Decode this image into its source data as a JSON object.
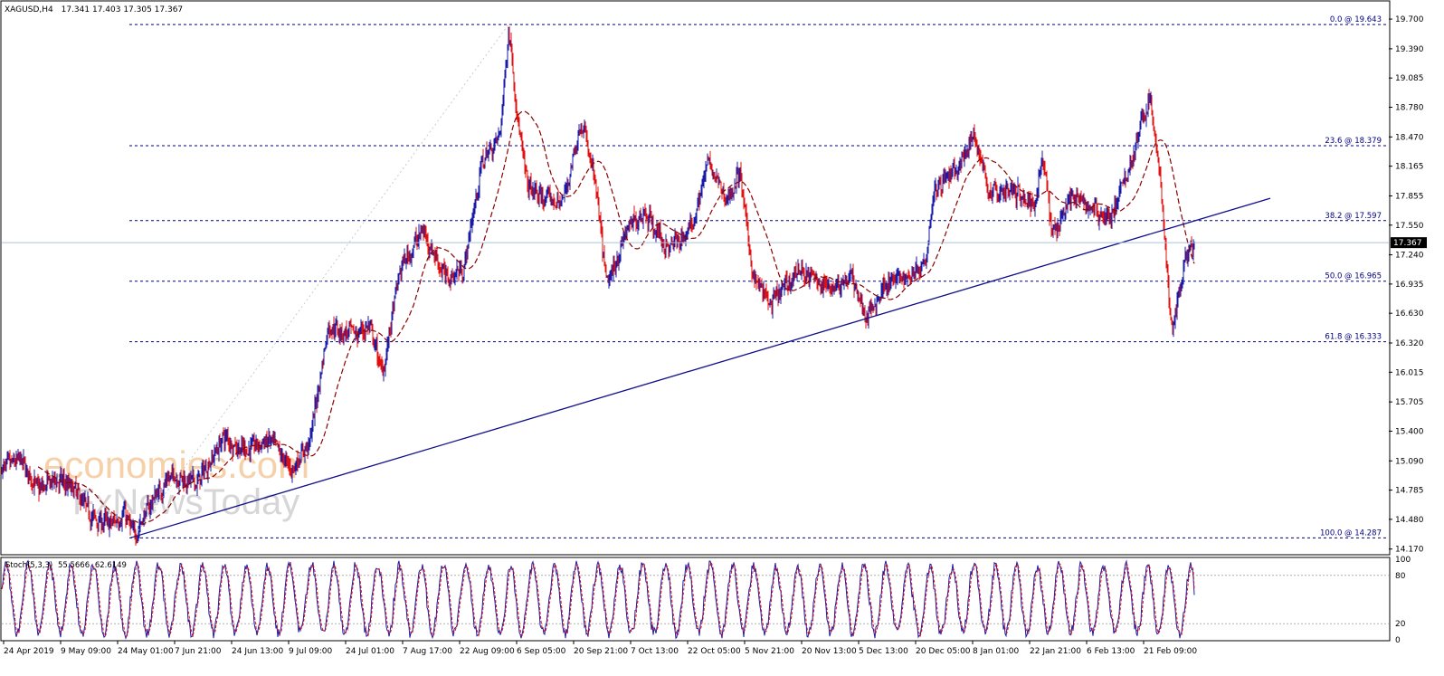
{
  "header": {
    "symbol": "XAGUSD,H4",
    "ohlc": "17.341 17.403 17.305 17.367"
  },
  "watermark": {
    "line1": "economies.com",
    "line2": "FxNewsToday"
  },
  "colors": {
    "bull": "#1a1aa8",
    "bear": "#e01010",
    "ma": "#8b0000",
    "fib": "#000080",
    "trendline": "#10108a",
    "grid_text": "#000000",
    "watermark_orange": "#f5c89a",
    "watermark_gray": "#d0d0d0"
  },
  "chart_data": [
    {
      "type": "candlestick",
      "title": "XAGUSD,H4",
      "y_axis": {
        "ticks": [
          19.7,
          19.39,
          19.085,
          18.78,
          18.47,
          18.165,
          17.855,
          17.55,
          17.24,
          16.935,
          16.63,
          16.32,
          16.015,
          15.705,
          15.4,
          15.09,
          14.785,
          14.48,
          14.17
        ],
        "tick_labels": [
          "19.700",
          "19.390",
          "19.085",
          "18.780",
          "18.470",
          "18.165",
          "17.855",
          "17.550",
          "17.240",
          "16.935",
          "16.630",
          "16.320",
          "16.015",
          "15.705",
          "15.400",
          "15.090",
          "14.785",
          "14.480",
          "14.170"
        ],
        "range": [
          14.12,
          19.88
        ]
      },
      "x_axis": {
        "tick_labels": [
          "24 Apr 2019",
          "9 May 09:00",
          "24 May 01:00",
          "7 Jun 21:00",
          "24 Jun 13:00",
          "9 Jul 09:00",
          "24 Jul 01:00",
          "7 Aug 17:00",
          "22 Aug 09:00",
          "6 Sep 05:00",
          "20 Sep 21:00",
          "7 Oct 13:00",
          "22 Oct 05:00",
          "5 Nov 21:00",
          "20 Nov 13:00",
          "5 Dec 13:00",
          "20 Dec 05:00",
          "8 Jan 01:00",
          "22 Jan 21:00",
          "6 Feb 13:00",
          "21 Feb 09:00"
        ]
      },
      "last_price": 17.367,
      "last_price_label": "17.367",
      "fib_levels": [
        {
          "level": 0.0,
          "price": 19.643,
          "label": "0.0 @ 19.643"
        },
        {
          "level": 23.6,
          "price": 18.379,
          "label": "23.6 @ 18.379"
        },
        {
          "level": 38.2,
          "price": 17.597,
          "label": "38.2 @ 17.597"
        },
        {
          "level": 50.0,
          "price": 16.965,
          "label": "50.0 @ 16.965"
        },
        {
          "level": 61.8,
          "price": 16.333,
          "label": "61.8 @ 16.333"
        },
        {
          "level": 100.0,
          "price": 14.287,
          "label": "100.0 @ 14.287"
        }
      ],
      "trendline": {
        "from": {
          "bar": 142,
          "price": 14.287
        },
        "to": {
          "bar": 1402,
          "price": 17.83
        }
      },
      "path_points": [
        [
          0,
          15.0
        ],
        [
          20,
          15.1
        ],
        [
          40,
          14.78
        ],
        [
          60,
          14.9
        ],
        [
          80,
          14.78
        ],
        [
          100,
          14.5
        ],
        [
          120,
          14.42
        ],
        [
          135,
          14.55
        ],
        [
          145,
          14.3
        ],
        [
          170,
          14.75
        ],
        [
          190,
          14.95
        ],
        [
          215,
          14.85
        ],
        [
          245,
          15.35
        ],
        [
          265,
          15.2
        ],
        [
          295,
          15.3
        ],
        [
          320,
          15.0
        ],
        [
          340,
          15.3
        ],
        [
          360,
          16.5
        ],
        [
          390,
          16.4
        ],
        [
          405,
          16.5
        ],
        [
          420,
          16.0
        ],
        [
          440,
          17.1
        ],
        [
          465,
          17.5
        ],
        [
          490,
          17.0
        ],
        [
          510,
          17.1
        ],
        [
          530,
          18.2
        ],
        [
          550,
          18.5
        ],
        [
          560,
          19.64
        ],
        [
          570,
          18.6
        ],
        [
          580,
          17.95
        ],
        [
          600,
          17.8
        ],
        [
          620,
          17.8
        ],
        [
          640,
          18.65
        ],
        [
          655,
          18.0
        ],
        [
          668,
          16.9
        ],
        [
          690,
          17.5
        ],
        [
          710,
          17.7
        ],
        [
          735,
          17.3
        ],
        [
          760,
          17.5
        ],
        [
          780,
          18.2
        ],
        [
          800,
          17.8
        ],
        [
          815,
          18.1
        ],
        [
          830,
          17.0
        ],
        [
          850,
          16.7
        ],
        [
          880,
          17.1
        ],
        [
          910,
          16.9
        ],
        [
          940,
          17.0
        ],
        [
          955,
          16.55
        ],
        [
          975,
          16.95
        ],
        [
          1000,
          17.0
        ],
        [
          1020,
          17.2
        ],
        [
          1030,
          17.95
        ],
        [
          1055,
          18.1
        ],
        [
          1075,
          18.5
        ],
        [
          1090,
          17.9
        ],
        [
          1120,
          17.9
        ],
        [
          1140,
          17.75
        ],
        [
          1150,
          18.3
        ],
        [
          1160,
          17.45
        ],
        [
          1180,
          17.85
        ],
        [
          1210,
          17.7
        ],
        [
          1225,
          17.6
        ],
        [
          1250,
          18.3
        ],
        [
          1268,
          18.9
        ],
        [
          1280,
          18.0
        ],
        [
          1292,
          16.4
        ],
        [
          1300,
          16.8
        ],
        [
          1305,
          17.1
        ],
        [
          1318,
          17.35
        ]
      ]
    },
    {
      "type": "line",
      "title": "Stoch(5,3,3) 55.5666 62.6149",
      "label": "Stoch(5,3,3)",
      "main_value": "55.5666",
      "signal_value": "62.6149",
      "y_axis": {
        "ticks": [
          100,
          80,
          20,
          0
        ],
        "tick_labels": [
          "100",
          "80",
          "20",
          "0"
        ],
        "range": [
          0,
          100
        ]
      },
      "levels": [
        80,
        20
      ]
    }
  ]
}
